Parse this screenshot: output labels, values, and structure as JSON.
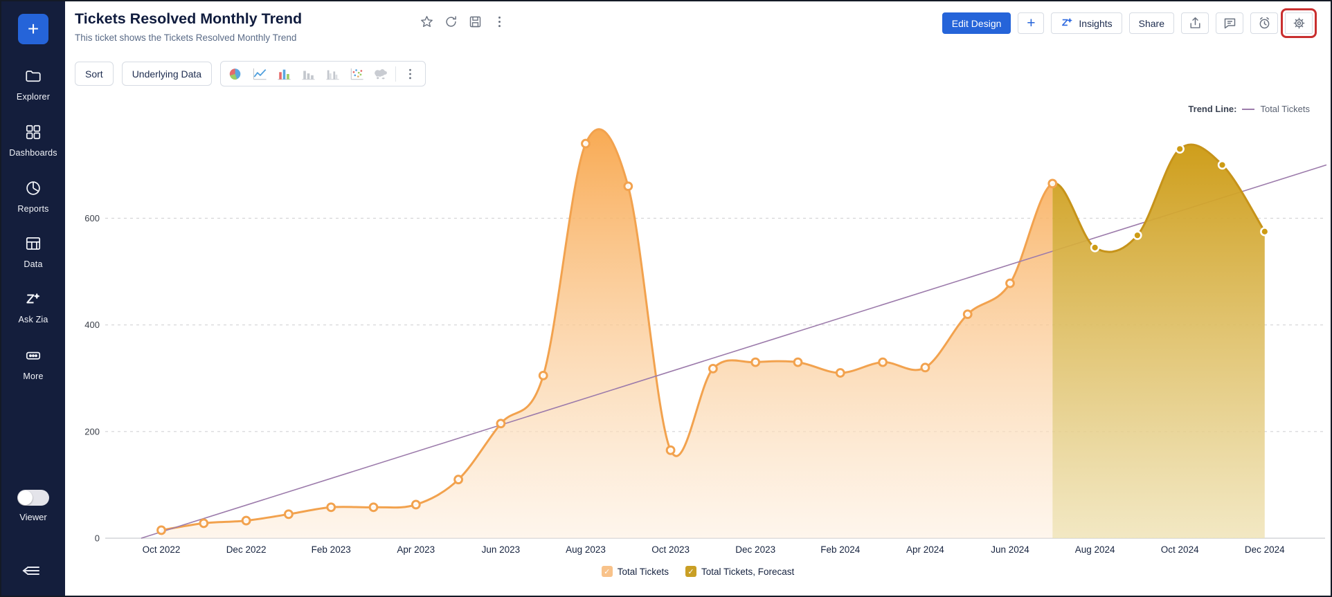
{
  "window": {
    "app": "Zoho Analytics viewer",
    "border_color": "#141a26"
  },
  "sidebar": {
    "bg_color": "#141e3c",
    "new_button_label": "+",
    "items": [
      {
        "id": "explorer",
        "label": "Explorer",
        "icon": "folder-icon"
      },
      {
        "id": "dashboards",
        "label": "Dashboards",
        "icon": "grid-icon"
      },
      {
        "id": "reports",
        "label": "Reports",
        "icon": "pie-outline-icon"
      },
      {
        "id": "data",
        "label": "Data",
        "icon": "table-icon"
      },
      {
        "id": "ask-zia",
        "label": "Ask Zia",
        "icon": "zia-icon"
      },
      {
        "id": "more",
        "label": "More",
        "icon": "ellipsis-icon"
      }
    ],
    "viewer_toggle": {
      "label": "Viewer",
      "state": "off"
    }
  },
  "header": {
    "title": "Tickets Resolved Monthly Trend",
    "subtitle": "This ticket shows the Tickets Resolved Monthly Trend",
    "title_icons": [
      "star-icon",
      "refresh-icon",
      "save-icon",
      "kebab-icon"
    ],
    "actions": {
      "edit_design": "Edit Design",
      "add": "+",
      "insights": "Insights",
      "share": "Share",
      "icon_buttons": [
        "export-icon",
        "comment-icon",
        "alarm-icon",
        "settings-gear-icon"
      ],
      "highlighted_button": "settings-gear-icon",
      "highlight_color": "#c92f2f",
      "accent_color": "#2564d9"
    }
  },
  "toolbar": {
    "sort_label": "Sort",
    "underlying_data_label": "Underlying Data",
    "chart_type_icons": [
      "pie-chart-icon",
      "line-chart-icon",
      "bar-chart-color-icon",
      "bar-chart-gray-icon",
      "grouped-bar-icon",
      "scatter-icon",
      "map-icon"
    ],
    "more_icon": "kebab-icon"
  },
  "chart_data": {
    "type": "area",
    "title": "Tickets Resolved Monthly Trend",
    "x": [
      "Oct 2022",
      "Nov 2022",
      "Dec 2022",
      "Jan 2023",
      "Feb 2023",
      "Mar 2023",
      "Apr 2023",
      "May 2023",
      "Jun 2023",
      "Jul 2023",
      "Aug 2023",
      "Sep 2023",
      "Oct 2023",
      "Nov 2023",
      "Dec 2023",
      "Jan 2024",
      "Feb 2024",
      "Mar 2024",
      "Apr 2024",
      "May 2024",
      "Jun 2024",
      "Jul 2024",
      "Aug 2024",
      "Sep 2024",
      "Oct 2024",
      "Nov 2024",
      "Dec 2024"
    ],
    "x_tick_labels": [
      "Oct 2022",
      "Dec 2022",
      "Feb 2023",
      "Apr 2023",
      "Jun 2023",
      "Aug 2023",
      "Oct 2023",
      "Dec 2023",
      "Feb 2024",
      "Apr 2024",
      "Jun 2024",
      "Aug 2024",
      "Oct 2024",
      "Dec 2024"
    ],
    "values": [
      15,
      28,
      33,
      45,
      58,
      58,
      63,
      110,
      215,
      305,
      740,
      660,
      165,
      318,
      330,
      330,
      310,
      330,
      320,
      420,
      478,
      665,
      545,
      568,
      730,
      700,
      575
    ],
    "forecast_start_index": 21,
    "yticks": [
      0,
      200,
      400,
      600
    ],
    "ylim": [
      0,
      760
    ],
    "grid": "dashed-horizontal",
    "legend_position": "bottom",
    "series": [
      {
        "name": "Total Tickets",
        "line_color": "#f2a24e",
        "fill_top": "#f8a64b",
        "fill_bottom": "#fdeedd",
        "legend_box_color": "#f8c28a"
      },
      {
        "name": "Total Tickets, Forecast",
        "line_color": "#c6931a",
        "fill_top": "#cd9b14",
        "fill_bottom": "#efe2b4",
        "legend_box_color": "#c99f25"
      }
    ],
    "trend_line": {
      "prefix": "Trend Line:",
      "label": "Total Tickets",
      "color": "#9c7bab",
      "start_value": 0,
      "end_value": 700
    },
    "legend_check": "✓"
  }
}
